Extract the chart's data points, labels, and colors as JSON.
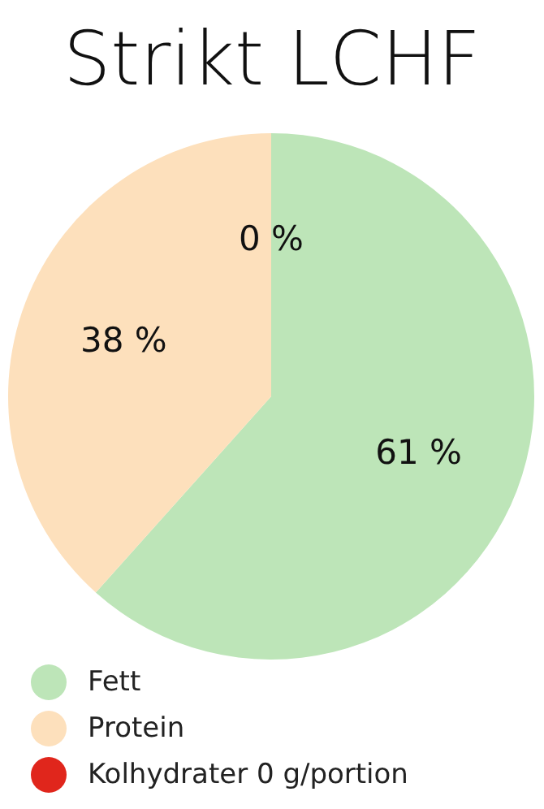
{
  "chart_data": {
    "type": "pie",
    "title": "Strikt LCHF",
    "categories": [
      "Fett",
      "Protein",
      "Kolhydrater 0 g/portion"
    ],
    "values": [
      61,
      38,
      0
    ],
    "colors": [
      "#bde5b8",
      "#fde0bc",
      "#e0261c"
    ],
    "value_labels": [
      "61 %",
      "38 %",
      "0 %"
    ],
    "legend": "bottom left"
  }
}
